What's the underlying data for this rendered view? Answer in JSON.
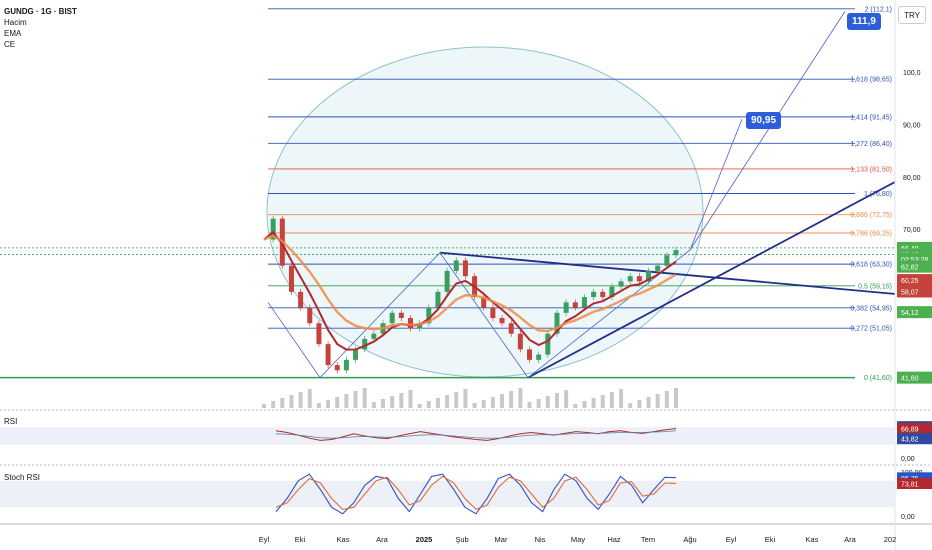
{
  "header": {
    "symbol": "GUNDG · 1G · BIST",
    "indicators": [
      "Hacim",
      "EMA",
      "CE"
    ],
    "currency_button": "TRY"
  },
  "callouts": {
    "target1": "111,9",
    "target2": "90,95"
  },
  "colors": {
    "fib_blue": "#2f52b8",
    "fib_orange": "#f08a45",
    "fib_red": "#e0533a",
    "trend_line": "#1f2f8a",
    "ellipse_fill": "#dfeff2",
    "ellipse_stroke": "#8fc3cc",
    "ema_red": "#b3282f",
    "ema_orange": "#f08a45",
    "ema_green": "#4caf50",
    "candle_up": "#3a9e60",
    "candle_down": "#c5433a",
    "rsi_line": "#b3282f",
    "rsi_ma": "#5d7ea5",
    "stoch_k": "#2a55c7",
    "stoch_d": "#e06b3a",
    "support_line": "#2f9e4f"
  },
  "chart_data": [
    {
      "type": "line",
      "title": "GUNDG · 1G · BIST",
      "xlabel": "",
      "ylabel": "",
      "x_ticks": [
        "Eyl",
        "Eki",
        "Kas",
        "Ara",
        "2025",
        "Şub",
        "Mar",
        "Nis",
        "May",
        "Haz",
        "Tem",
        "Ağu",
        "Eyl",
        "Eki",
        "Kas",
        "Ara",
        "202"
      ],
      "y_ticks": [
        70.0,
        80.0,
        90.0,
        100.0,
        110.0
      ],
      "y_tick_labels": [
        "70,00",
        "80,00",
        "90,00",
        "100,0",
        "110,0"
      ],
      "ylim": [
        40,
        118
      ],
      "fibonacci": [
        {
          "level": "2",
          "value": 112.1,
          "label": "2 (112,1)",
          "color": "blue"
        },
        {
          "level": "1.618",
          "value": 98.65,
          "label": "1,618 (98,65)",
          "color": "blue"
        },
        {
          "level": "1.414",
          "value": 91.45,
          "label": "1,414 (91,45)",
          "color": "blue"
        },
        {
          "level": "1.272",
          "value": 86.4,
          "label": "1,272 (86,40)",
          "color": "blue"
        },
        {
          "level": "1.133",
          "value": 81.5,
          "label": "1,133 (81,50)",
          "color": "red"
        },
        {
          "level": "1",
          "value": 76.8,
          "label": "1 (76,80)",
          "color": "blue"
        },
        {
          "level": "0.886",
          "value": 72.75,
          "label": "0,886 (72,75)",
          "color": "orange"
        },
        {
          "level": "0.786",
          "value": 69.25,
          "label": "0,786 (69,25)",
          "color": "orange"
        },
        {
          "level": "0.618",
          "value": 63.3,
          "label": "0,618 (63,30)",
          "color": "blue"
        },
        {
          "level": "0.5",
          "value": 59.15,
          "label": "0,5 (59,15)",
          "color": "green"
        },
        {
          "level": "0.382",
          "value": 54.95,
          "label": "0,382 (54,95)",
          "color": "blue"
        },
        {
          "level": "0.272",
          "value": 51.05,
          "label": "0,272 (51,05)",
          "color": "blue"
        },
        {
          "level": "0",
          "value": 41.6,
          "label": "0 (41,60)",
          "color": "green"
        }
      ],
      "price_badges": [
        {
          "value": 66.4,
          "label": "66,40",
          "color": "#4caf50"
        },
        {
          "value": 65.15,
          "label": "65,15",
          "color": "#4caf50"
        },
        {
          "value": 64.3,
          "label": "02:53:28",
          "color": "#4caf50"
        },
        {
          "value": 62.82,
          "label": "62,82",
          "color": "#4caf50"
        },
        {
          "value": 60.25,
          "label": "60,25",
          "color": "#c5433a"
        },
        {
          "value": 58.07,
          "label": "58,07",
          "color": "#c5433a"
        },
        {
          "value": 54.12,
          "label": "54,12",
          "color": "#4caf50"
        },
        {
          "value": 41.6,
          "label": "41,60",
          "color": "#4caf50"
        }
      ],
      "series": [
        {
          "name": "",
          "values": [
            68,
            72,
            63,
            58,
            55,
            52,
            48,
            44,
            43,
            45,
            47,
            49,
            50,
            52,
            54,
            53,
            51,
            52,
            55,
            58,
            62,
            64,
            61,
            57,
            55,
            53,
            52,
            50,
            47,
            45,
            46,
            50,
            54,
            56,
            55,
            57,
            58,
            57,
            59,
            60,
            61,
            60,
            62,
            63,
            65,
            66
          ]
        }
      ]
    },
    {
      "type": "line",
      "title": "RSI",
      "y_ticks": [
        71.2,
        66.89,
        43.82,
        0.0
      ],
      "y_tick_labels": [
        "71,20",
        "66,89",
        "43,82",
        "0,00"
      ],
      "series": [
        {
          "name": "",
          "values": [
            62,
            58,
            52,
            45,
            40,
            42,
            48,
            55,
            50,
            46,
            44,
            50,
            55,
            60,
            56,
            52,
            48,
            45,
            42,
            40,
            44,
            50,
            55,
            58,
            55,
            52,
            56,
            60,
            58,
            55,
            60,
            62,
            58,
            56,
            60,
            64,
            67
          ]
        },
        {
          "name": "",
          "values": [
            55,
            54,
            52,
            49,
            46,
            45,
            46,
            48,
            49,
            48,
            47,
            48,
            50,
            52,
            53,
            52,
            50,
            48,
            46,
            45,
            45,
            47,
            50,
            52,
            53,
            53,
            54,
            56,
            56,
            56,
            57,
            58,
            58,
            58,
            59,
            60,
            62
          ]
        }
      ]
    },
    {
      "type": "line",
      "title": "Stoch RSI",
      "y_ticks": [
        100.0,
        86.75,
        73.81,
        0.0
      ],
      "y_tick_labels": [
        "100,00",
        "86,75",
        "73,81",
        "0,00"
      ],
      "series": [
        {
          "name": "",
          "values": [
            10,
            40,
            80,
            95,
            60,
            20,
            5,
            30,
            70,
            90,
            85,
            40,
            10,
            50,
            90,
            95,
            60,
            20,
            5,
            40,
            85,
            95,
            70,
            30,
            10,
            60,
            95,
            80,
            40,
            15,
            50,
            90,
            70,
            30,
            60,
            88,
            87
          ]
        },
        {
          "name": "",
          "values": [
            20,
            30,
            60,
            85,
            75,
            40,
            15,
            20,
            50,
            80,
            88,
            60,
            25,
            35,
            70,
            90,
            75,
            40,
            15,
            25,
            65,
            88,
            80,
            50,
            20,
            40,
            80,
            88,
            60,
            25,
            35,
            75,
            78,
            45,
            50,
            75,
            74
          ]
        }
      ]
    }
  ]
}
